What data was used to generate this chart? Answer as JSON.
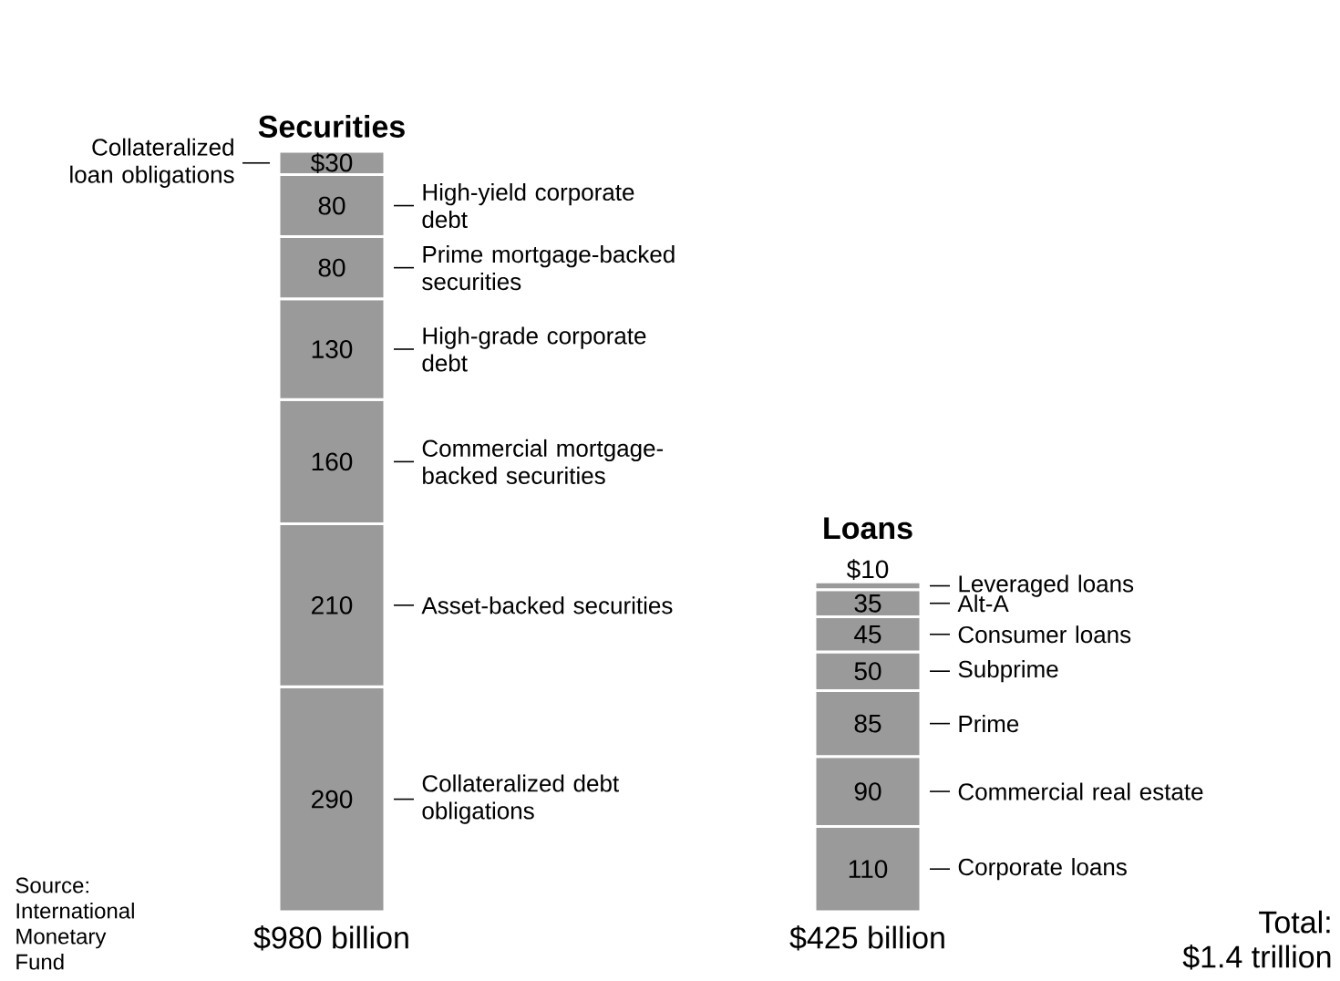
{
  "chart_data": {
    "type": "bar",
    "stacked": true,
    "categories": [
      "Securities",
      "Loans"
    ],
    "series": [
      {
        "name": "Collateralized debt obligations",
        "color": "#9a9a9a",
        "values": [
          290,
          null
        ],
        "value_labels": [
          "290",
          null
        ]
      },
      {
        "name": "Asset-backed securities",
        "color": "#9a9a9a",
        "values": [
          210,
          null
        ],
        "value_labels": [
          "210",
          null
        ]
      },
      {
        "name": "Commercial mortgage-backed securities",
        "color": "#9a9a9a",
        "values": [
          160,
          null
        ],
        "value_labels": [
          "160",
          null
        ]
      },
      {
        "name": "High-grade corporate debt",
        "color": "#9a9a9a",
        "values": [
          130,
          null
        ],
        "value_labels": [
          "130",
          null
        ]
      },
      {
        "name": "Prime mortgage-backed securities",
        "color": "#9a9a9a",
        "values": [
          80,
          null
        ],
        "value_labels": [
          "80",
          null
        ]
      },
      {
        "name": "High-yield corporate debt",
        "color": "#9a9a9a",
        "values": [
          80,
          null
        ],
        "value_labels": [
          "80",
          null
        ]
      },
      {
        "name": "Collateralized loan obligations",
        "color": "#9a9a9a",
        "values": [
          30,
          null
        ],
        "value_labels": [
          "$30",
          null
        ]
      },
      {
        "name": "Corporate loans",
        "color": "#9a9a9a",
        "values": [
          null,
          110
        ],
        "value_labels": [
          null,
          "110"
        ]
      },
      {
        "name": "Commercial real estate",
        "color": "#9a9a9a",
        "values": [
          null,
          90
        ],
        "value_labels": [
          null,
          "90"
        ]
      },
      {
        "name": "Prime",
        "color": "#9a9a9a",
        "values": [
          null,
          85
        ],
        "value_labels": [
          null,
          "85"
        ]
      },
      {
        "name": "Subprime",
        "color": "#9a9a9a",
        "values": [
          null,
          50
        ],
        "value_labels": [
          null,
          "50"
        ]
      },
      {
        "name": "Consumer loans",
        "color": "#9a9a9a",
        "values": [
          null,
          45
        ],
        "value_labels": [
          null,
          "45"
        ]
      },
      {
        "name": "Alt-A",
        "color": "#9a9a9a",
        "values": [
          null,
          35
        ],
        "value_labels": [
          null,
          "35"
        ]
      },
      {
        "name": "Leveraged loans",
        "color": "#9a9a9a",
        "values": [
          null,
          10
        ],
        "value_labels": [
          null,
          "$10"
        ]
      }
    ],
    "totals": [
      "$980 billion",
      "$425 billion"
    ],
    "annotations": [
      "Source: International Monetary Fund",
      "Total:",
      "$1.4 trillion"
    ]
  }
}
